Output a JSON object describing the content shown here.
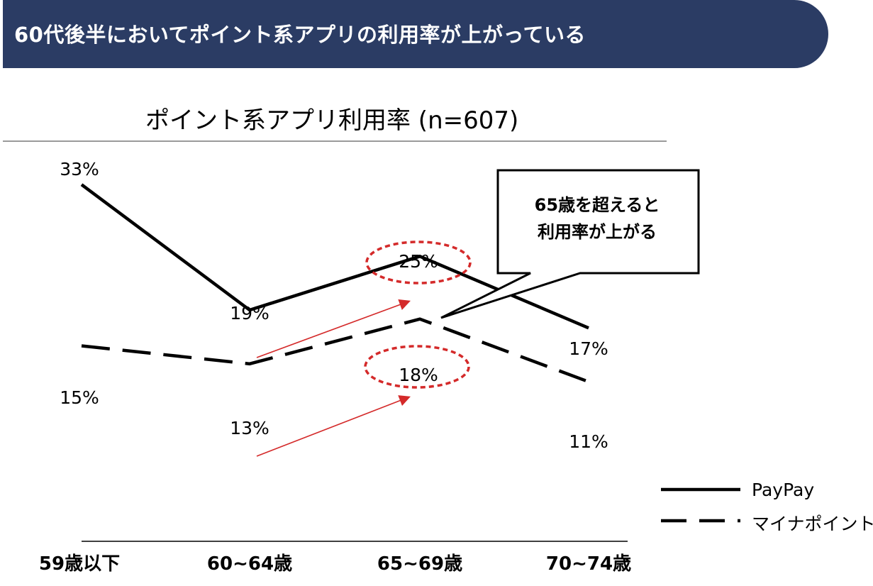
{
  "banner": {
    "text": "60代後半においてポイント系アプリの利用率が上がっている"
  },
  "chart_data": {
    "type": "line",
    "title": "ポイント系アプリ利用率 (n=607)",
    "categories": [
      "59歳以下",
      "60~64歳",
      "65~69歳",
      "70~74歳"
    ],
    "series": [
      {
        "name": "PayPay",
        "values": [
          33,
          19,
          25,
          17
        ],
        "labels": [
          "33%",
          "19%",
          "25%",
          "17%"
        ],
        "style": "solid"
      },
      {
        "name": "マイナポイント",
        "values": [
          15,
          13,
          18,
          11
        ],
        "labels": [
          "15%",
          "13%",
          "18%",
          "11%"
        ],
        "style": "dashed"
      }
    ],
    "unit": "%",
    "legend": "bottom-right",
    "grid": false,
    "colors": {
      "line": "#000000",
      "highlight": "#d42a2a",
      "banner": "#2b3c64"
    }
  },
  "callout": {
    "line1": "65歳を超えると",
    "line2": "利用率が上がる"
  }
}
